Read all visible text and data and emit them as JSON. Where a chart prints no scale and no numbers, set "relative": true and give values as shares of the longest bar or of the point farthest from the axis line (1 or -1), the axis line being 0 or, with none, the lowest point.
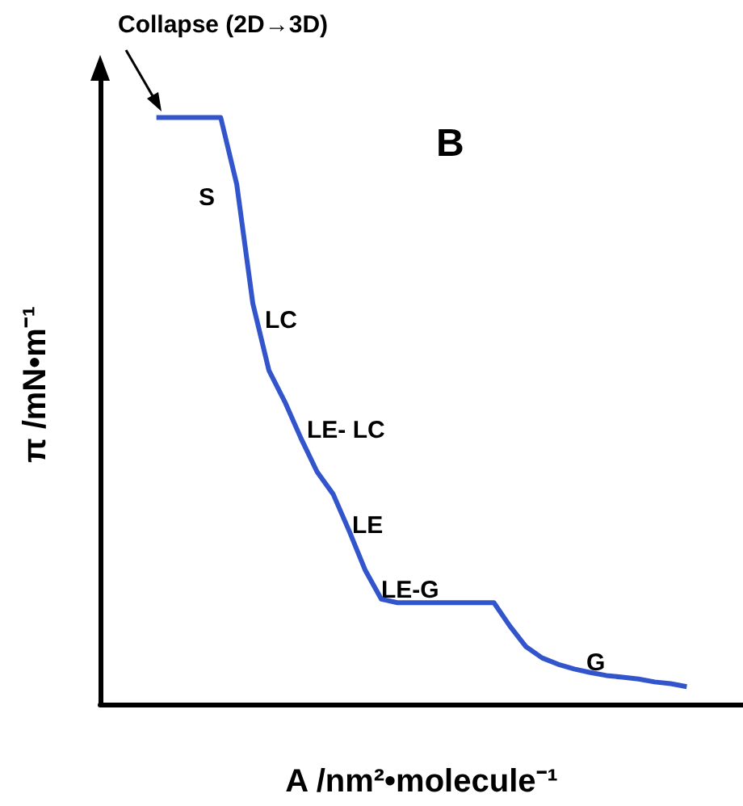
{
  "chart_data": {
    "type": "line",
    "relative": true,
    "title": "B",
    "xlabel": "A /nm²•molecule⁻¹",
    "ylabel": "π /mN•m⁻¹",
    "categories": [
      null,
      null,
      null,
      null,
      null,
      null,
      null,
      null,
      null,
      null,
      null,
      null,
      null,
      null,
      null,
      null,
      null,
      null,
      null,
      null,
      null,
      null,
      null,
      null,
      null,
      null,
      null,
      null,
      null,
      null,
      null,
      null,
      null,
      null,
      null,
      null,
      null,
      null,
      null,
      null
    ],
    "series": [
      {
        "color": "#3355cc",
        "values": [
          null,
          null,
          null,
          1,
          1,
          1,
          1,
          1,
          0.886,
          0.683,
          0.569,
          0.515,
          0.453,
          0.396,
          0.358,
          0.295,
          0.228,
          0.179,
          0.173,
          0.173,
          0.173,
          0.173,
          0.173,
          0.173,
          0.173,
          0.133,
          0.098,
          0.079,
          0.068,
          0.06,
          0.054,
          0.049,
          0.046,
          0.043,
          0.038,
          0.035,
          0.03,
          null,
          null,
          null
        ]
      }
    ],
    "annotations": [
      "Collapse (2D→3D)",
      "S",
      "LC",
      "LE- LC",
      "LE",
      "LE-G",
      "G"
    ],
    "marker": "none",
    "line_style": "solid",
    "grid": false
  }
}
